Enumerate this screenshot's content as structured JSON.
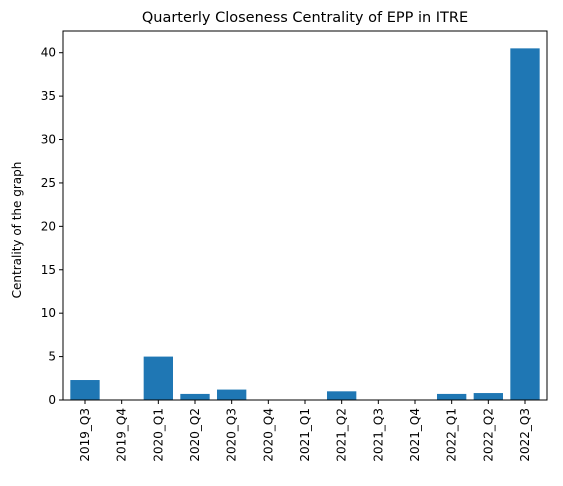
{
  "chart_data": {
    "type": "bar",
    "title": "Quarterly Closeness Centrality of EPP in ITRE",
    "xlabel": "",
    "ylabel": "Centrality of the graph",
    "categories": [
      "2019_Q3",
      "2019_Q4",
      "2020_Q1",
      "2020_Q2",
      "2020_Q3",
      "2020_Q4",
      "2021_Q1",
      "2021_Q2",
      "2021_Q3",
      "2021_Q4",
      "2022_Q1",
      "2022_Q2",
      "2022_Q3"
    ],
    "values": [
      2.3,
      0,
      5.0,
      0.7,
      1.2,
      0,
      0,
      1.0,
      0,
      0,
      0.7,
      0.8,
      40.5
    ],
    "ylim": [
      0,
      42.5
    ],
    "yticks": [
      0,
      5,
      10,
      15,
      20,
      25,
      30,
      35,
      40
    ],
    "grid": false,
    "bar_color": "#1f77b4"
  }
}
